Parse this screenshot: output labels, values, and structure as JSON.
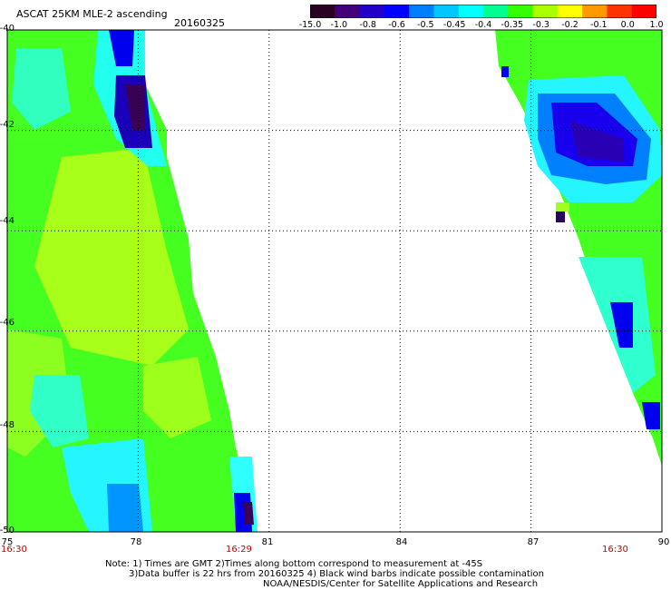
{
  "header": {
    "title": "ASCAT 25KM MLE-2 ascending",
    "date": "20160325"
  },
  "colorbar": {
    "labels": [
      "-15.0",
      "-1.0",
      "-0.8",
      "-0.6",
      "-0.5",
      "-0.45",
      "-0.4",
      "-0.35",
      "-0.3",
      "-0.2",
      "-0.1",
      "0.0",
      "1.0"
    ],
    "colors": [
      "#2a0022",
      "#43007a",
      "#2200c8",
      "#0000ff",
      "#0080ff",
      "#00c8ff",
      "#00ffff",
      "#00ff90",
      "#33ff00",
      "#aaff00",
      "#ffff00",
      "#ff9900",
      "#ff3300",
      "#ff0000"
    ]
  },
  "axes": {
    "x_ticks": [
      "75",
      "78",
      "81",
      "84",
      "87",
      "90"
    ],
    "y_ticks": [
      "-40",
      "-42",
      "-44",
      "-46",
      "-48",
      "-50"
    ],
    "times": {
      "left": "16:30",
      "mid": "16:29",
      "right": "16:30"
    }
  },
  "notes": {
    "line1": "Note: 1) Times are GMT 2)Times along bottom correspond to measurement at -45S",
    "line2": "3)Data buffer is 22 hrs from 20160325 4) Black wind barbs indicate possible contamination",
    "line3": "NOAA/NESDIS/Center for Satellite Applications and Research"
  }
}
